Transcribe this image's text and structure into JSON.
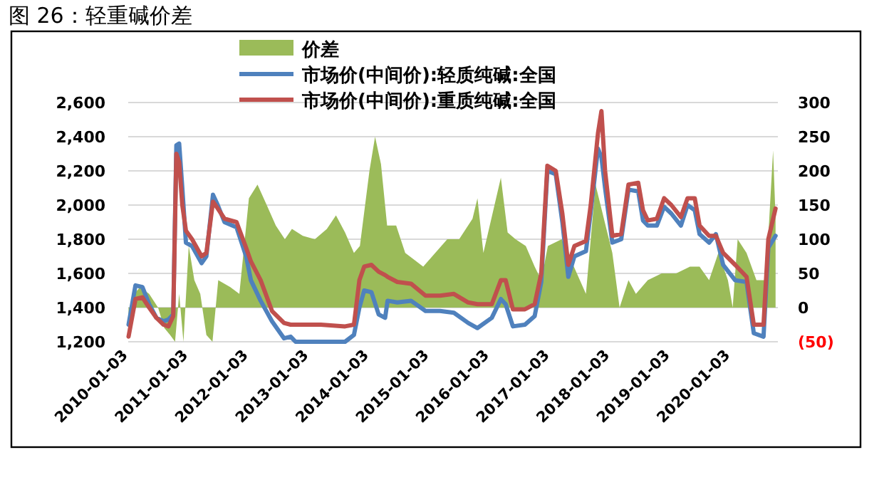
{
  "chart_data": {
    "type": "line",
    "title": "图 26：轻重碱价差",
    "xlim": [
      "2010-01-01",
      "2020-10-15"
    ],
    "xticks": [
      "2010-01-03",
      "2011-01-03",
      "2012-01-03",
      "2013-01-03",
      "2014-01-03",
      "2015-01-03",
      "2016-01-03",
      "2017-01-03",
      "2018-01-03",
      "2019-01-03",
      "2020-01-03"
    ],
    "ylim": [
      1200,
      2600
    ],
    "yticks": [
      {
        "value": 1200,
        "label": "1,200"
      },
      {
        "value": 1400,
        "label": "1,400"
      },
      {
        "value": 1600,
        "label": "1,600"
      },
      {
        "value": 1800,
        "label": "1,800"
      },
      {
        "value": 2000,
        "label": "2,000"
      },
      {
        "value": 2200,
        "label": "2,200"
      },
      {
        "value": 2400,
        "label": "2,400"
      },
      {
        "value": 2600,
        "label": "2,600"
      }
    ],
    "y2lim": [
      -50,
      300
    ],
    "y2ticks": [
      {
        "value": -50,
        "label": "(50)"
      },
      0,
      50,
      100,
      150,
      200,
      250,
      300
    ],
    "grid": "y",
    "legend": "top",
    "marker": "none",
    "line_style": "solid",
    "series": [
      {
        "name": "价差",
        "type": "area",
        "axis": "y2",
        "color": "#9bbb59",
        "x": [
          "2010-01-03",
          "2010-02-06",
          "2010-03-14",
          "2010-05-08",
          "2010-07-01",
          "2010-08-08",
          "2010-09-12",
          "2010-10-12",
          "2010-11-06",
          "2010-12-02",
          "2011-01-03",
          "2011-02-06",
          "2011-03-14",
          "2011-04-20",
          "2011-05-27",
          "2011-07-01",
          "2011-09-12",
          "2011-11-06",
          "2012-01-03",
          "2012-02-24",
          "2012-04-20",
          "2012-06-14",
          "2012-08-08",
          "2012-09-20",
          "2012-11-25",
          "2013-02-06",
          "2013-04-20",
          "2013-06-14",
          "2013-08-08",
          "2013-10-01",
          "2013-11-06",
          "2014-01-03",
          "2014-02-06",
          "2014-03-14",
          "2014-04-20",
          "2014-06-14",
          "2014-08-08",
          "2014-10-01",
          "2014-11-25",
          "2015-02-06",
          "2015-04-20",
          "2015-07-01",
          "2015-09-20",
          "2015-10-20",
          "2015-11-25",
          "2016-03-10",
          "2016-04-20",
          "2016-06-07",
          "2016-08-08",
          "2016-10-01",
          "2016-11-10",
          "2016-12-20",
          "2017-03-14",
          "2017-05-08",
          "2017-08-08",
          "2017-10-05",
          "2017-11-25",
          "2018-01-15",
          "2018-02-28",
          "2018-04-23",
          "2018-06-07",
          "2018-08-18",
          "2018-11-10",
          "2019-02-06",
          "2019-05-01",
          "2019-06-28",
          "2019-08-25",
          "2019-10-20",
          "2019-12-17",
          "2020-01-15",
          "2020-02-14",
          "2020-04-08",
          "2020-06-07",
          "2020-08-03",
          "2020-09-16",
          "2020-10-01"
        ],
        "values": [
          -40,
          20,
          30,
          20,
          0,
          -30,
          -40,
          -50,
          20,
          -50,
          90,
          40,
          20,
          -40,
          -50,
          40,
          30,
          20,
          160,
          180,
          150,
          120,
          100,
          115,
          105,
          100,
          115,
          135,
          110,
          80,
          90,
          200,
          250,
          210,
          120,
          120,
          80,
          70,
          60,
          80,
          100,
          100,
          130,
          160,
          80,
          190,
          110,
          100,
          90,
          60,
          40,
          90,
          100,
          70,
          20,
          180,
          130,
          80,
          0,
          40,
          20,
          40,
          50,
          50,
          60,
          60,
          40,
          80,
          40,
          0,
          100,
          80,
          40,
          40,
          230,
          130
        ]
      },
      {
        "name": "市场价(中间价):轻质纯碱:全国",
        "color": "#4f81bd",
        "x": [
          "2010-01-03",
          "2010-02-14",
          "2010-03-28",
          "2010-05-08",
          "2010-06-21",
          "2010-08-03",
          "2010-09-02",
          "2010-10-01",
          "2010-10-20",
          "2010-11-06",
          "2010-11-25",
          "2010-12-17",
          "2011-01-23",
          "2011-03-22",
          "2011-04-20",
          "2011-05-30",
          "2011-06-28",
          "2011-08-08",
          "2011-10-20",
          "2011-12-17",
          "2012-01-15",
          "2012-03-14",
          "2012-05-22",
          "2012-08-03",
          "2012-09-12",
          "2012-10-12",
          "2013-03-14",
          "2013-08-08",
          "2013-10-01",
          "2013-11-03",
          "2013-12-02",
          "2014-01-15",
          "2014-02-28",
          "2014-04-08",
          "2014-04-23",
          "2014-06-21",
          "2014-09-12",
          "2014-12-09",
          "2015-03-07",
          "2015-05-30",
          "2015-08-25",
          "2015-10-20",
          "2016-01-15",
          "2016-03-10",
          "2016-04-08",
          "2016-05-22",
          "2016-08-03",
          "2016-10-01",
          "2016-11-10",
          "2016-12-17",
          "2017-02-06",
          "2017-03-18",
          "2017-04-23",
          "2017-05-30",
          "2017-08-08",
          "2017-09-06",
          "2017-10-20",
          "2017-11-10",
          "2017-12-02",
          "2018-01-15",
          "2018-03-10",
          "2018-04-23",
          "2018-06-21",
          "2018-07-20",
          "2018-08-18",
          "2018-10-12",
          "2018-11-25",
          "2019-01-08",
          "2019-03-07",
          "2019-04-16",
          "2019-05-30",
          "2019-06-28",
          "2019-08-25",
          "2019-10-05",
          "2019-11-18",
          "2020-01-30",
          "2020-04-08",
          "2020-05-22",
          "2020-07-20",
          "2020-08-18",
          "2020-10-01"
        ],
        "values": [
          1300,
          1530,
          1520,
          1420,
          1340,
          1320,
          1330,
          1360,
          2350,
          2360,
          2100,
          1780,
          1760,
          1660,
          1700,
          2060,
          2000,
          1900,
          1870,
          1700,
          1560,
          1440,
          1320,
          1220,
          1230,
          1200,
          1200,
          1200,
          1240,
          1400,
          1500,
          1490,
          1360,
          1340,
          1440,
          1430,
          1440,
          1380,
          1380,
          1370,
          1310,
          1280,
          1340,
          1450,
          1420,
          1290,
          1300,
          1350,
          1550,
          2200,
          2180,
          1900,
          1580,
          1700,
          1730,
          1960,
          2330,
          2280,
          2100,
          1780,
          1800,
          2090,
          2080,
          1910,
          1880,
          1880,
          1990,
          1950,
          1880,
          2000,
          1970,
          1830,
          1780,
          1830,
          1650,
          1560,
          1550,
          1250,
          1230,
          1750,
          1820
        ]
      },
      {
        "name": "市场价(中间价):重质纯碱:全国",
        "color": "#c0504d",
        "x": [
          "2010-01-03",
          "2010-02-14",
          "2010-03-28",
          "2010-05-08",
          "2010-06-21",
          "2010-08-03",
          "2010-09-02",
          "2010-10-01",
          "2010-10-20",
          "2010-11-06",
          "2010-11-25",
          "2010-12-17",
          "2011-01-23",
          "2011-03-22",
          "2011-04-20",
          "2011-05-30",
          "2011-06-28",
          "2011-08-08",
          "2011-10-20",
          "2011-12-17",
          "2012-01-15",
          "2012-03-14",
          "2012-05-22",
          "2012-08-03",
          "2012-09-12",
          "2012-10-12",
          "2013-03-14",
          "2013-08-08",
          "2013-10-01",
          "2013-11-03",
          "2013-12-02",
          "2014-01-15",
          "2014-02-28",
          "2014-04-08",
          "2014-04-23",
          "2014-06-21",
          "2014-09-12",
          "2014-12-09",
          "2015-03-07",
          "2015-05-30",
          "2015-08-25",
          "2015-10-20",
          "2016-01-15",
          "2016-03-10",
          "2016-04-08",
          "2016-05-22",
          "2016-08-03",
          "2016-10-01",
          "2016-11-10",
          "2016-12-17",
          "2017-02-06",
          "2017-03-18",
          "2017-04-23",
          "2017-05-30",
          "2017-08-08",
          "2017-09-06",
          "2017-10-20",
          "2017-11-10",
          "2017-12-02",
          "2018-01-15",
          "2018-03-10",
          "2018-04-23",
          "2018-06-21",
          "2018-07-20",
          "2018-08-18",
          "2018-10-12",
          "2018-11-25",
          "2019-01-08",
          "2019-03-07",
          "2019-04-16",
          "2019-05-30",
          "2019-06-28",
          "2019-08-25",
          "2019-10-05",
          "2019-11-18",
          "2020-01-30",
          "2020-04-08",
          "2020-05-22",
          "2020-07-20",
          "2020-08-18",
          "2020-10-01"
        ],
        "values": [
          1230,
          1450,
          1460,
          1400,
          1340,
          1300,
          1290,
          1350,
          2300,
          2250,
          2000,
          1850,
          1800,
          1700,
          1720,
          2020,
          1980,
          1920,
          1900,
          1750,
          1670,
          1560,
          1380,
          1310,
          1300,
          1300,
          1300,
          1290,
          1300,
          1560,
          1640,
          1650,
          1610,
          1590,
          1580,
          1550,
          1540,
          1470,
          1470,
          1480,
          1430,
          1420,
          1420,
          1560,
          1560,
          1390,
          1390,
          1420,
          1600,
          2230,
          2200,
          1950,
          1650,
          1760,
          1790,
          2000,
          2420,
          2550,
          2200,
          1820,
          1830,
          2120,
          2130,
          1970,
          1910,
          1920,
          2040,
          2000,
          1930,
          2040,
          2040,
          1880,
          1820,
          1820,
          1720,
          1650,
          1580,
          1300,
          1300,
          1800,
          1980
        ]
      }
    ]
  }
}
